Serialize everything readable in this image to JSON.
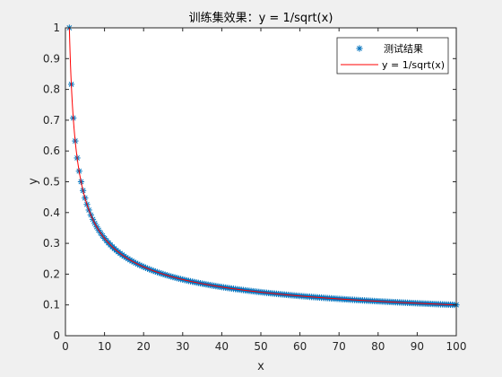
{
  "chart_data": {
    "type": "scatter",
    "title": "训练集效果：y = 1/sqrt(x)",
    "xlabel": "x",
    "ylabel": "y",
    "xlim": [
      0,
      100
    ],
    "ylim": [
      0,
      1
    ],
    "x_ticks": [
      "0",
      "10",
      "20",
      "30",
      "40",
      "50",
      "60",
      "70",
      "80",
      "90",
      "100"
    ],
    "y_ticks": [
      "0",
      "0.1",
      "0.2",
      "0.3",
      "0.4",
      "0.5",
      "0.6",
      "0.7",
      "0.8",
      "0.9",
      "1"
    ],
    "x_tick_values": [
      0,
      10,
      20,
      30,
      40,
      50,
      60,
      70,
      80,
      90,
      100
    ],
    "y_tick_values": [
      0,
      0.1,
      0.2,
      0.3,
      0.4,
      0.5,
      0.6,
      0.7,
      0.8,
      0.9,
      1
    ],
    "grid": false,
    "legend_position": "top-right",
    "series": [
      {
        "name": "测试结果",
        "kind": "scatter",
        "marker": "asterisk",
        "color": "#0072BD",
        "x_start": 1,
        "x_end": 100,
        "x_step": 0.5,
        "function": "y = 1/sqrt(x)"
      },
      {
        "name": "y = 1/sqrt(x)",
        "kind": "line",
        "color": "#FF0000",
        "x_start": 1,
        "x_end": 100,
        "function": "y = 1/sqrt(x)"
      }
    ]
  },
  "colors": {
    "figure_bg": "#f0f0f0",
    "axes_bg": "#ffffff",
    "axis": "#262626",
    "scatter": "#0072BD",
    "line": "#FF0000"
  }
}
